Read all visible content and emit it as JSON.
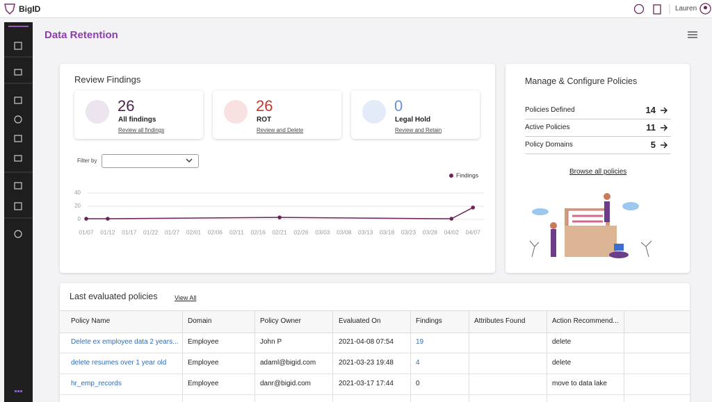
{
  "header": {
    "brand": "BigID",
    "user": "Lauren"
  },
  "page_title": "Data Retention",
  "review": {
    "title": "Review Findings",
    "filter_label": "Filter by",
    "cards": [
      {
        "count": 26,
        "label": "All findings",
        "link": "Review all findings"
      },
      {
        "count": 26,
        "label": "ROT",
        "link": "Review and Delete"
      },
      {
        "count": 0,
        "label": "Legal Hold",
        "link": "Review and Retain"
      }
    ]
  },
  "chart_data": {
    "type": "line",
    "xticks": [
      "01/07",
      "01/12",
      "01/17",
      "01/22",
      "01/27",
      "02/01",
      "02/06",
      "02/11",
      "02/16",
      "02/21",
      "02/26",
      "03/03",
      "03/08",
      "03/13",
      "03/18",
      "03/23",
      "03/28",
      "04/02",
      "04/07"
    ],
    "x": [
      "01/07",
      "01/12",
      "02/21",
      "04/02",
      "04/07"
    ],
    "series": [
      {
        "name": "Findings",
        "color": "#6b2458",
        "values": [
          1,
          1,
          3,
          1,
          18
        ]
      }
    ],
    "ylim": [
      0,
      40
    ],
    "yticks": [
      0,
      20,
      40
    ],
    "grid": true,
    "legend": "top-right"
  },
  "policies": {
    "title": "Manage & Configure Policies",
    "rows": [
      {
        "label": "Policies Defined",
        "count": 14
      },
      {
        "label": "Active Policies",
        "count": 11
      },
      {
        "label": "Policy Domains",
        "count": 5
      }
    ],
    "link": "Browse all policies"
  },
  "table": {
    "title": "Last evaluated policies",
    "view_all": "View All",
    "columns": [
      "Policy Name",
      "Domain",
      "Policy Owner",
      "Evaluated On",
      "Findings",
      "Attributes Found",
      "Action Recommend..."
    ],
    "rows": [
      [
        "Delete ex employee data 2 years...",
        "Employee",
        "John P",
        "2021-04-08 07:54",
        19,
        "",
        "delete"
      ],
      [
        "delete resumes over 1 year old",
        "Employee",
        "adaml@bigid.com",
        "2021-03-23 19:48",
        4,
        "",
        "delete"
      ],
      [
        "hr_emp_records",
        "Employee",
        "danr@bigid.com",
        "2021-03-17 17:44",
        0,
        "",
        "move to data lake"
      ]
    ]
  }
}
